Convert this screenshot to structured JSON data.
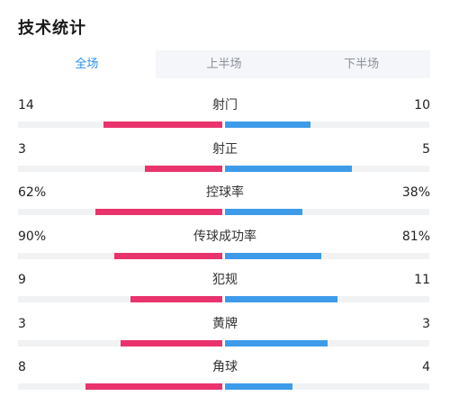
{
  "title": "技术统计",
  "tabs": [
    {
      "label": "全场",
      "active": true
    },
    {
      "label": "上半场",
      "active": false
    },
    {
      "label": "下半场",
      "active": false
    }
  ],
  "colors": {
    "home": "#e8336d",
    "away": "#3d9be9",
    "active_tab": "#2d8cf0"
  },
  "stats": [
    {
      "name": "射门",
      "left": "14",
      "right": "10",
      "left_share": 0.58,
      "right_share": 0.42
    },
    {
      "name": "射正",
      "left": "3",
      "right": "5",
      "left_share": 0.38,
      "right_share": 0.62
    },
    {
      "name": "控球率",
      "left": "62%",
      "right": "38%",
      "left_share": 0.62,
      "right_share": 0.38
    },
    {
      "name": "传球成功率",
      "left": "90%",
      "right": "81%",
      "left_share": 0.53,
      "right_share": 0.47
    },
    {
      "name": "犯规",
      "left": "9",
      "right": "11",
      "left_share": 0.45,
      "right_share": 0.55
    },
    {
      "name": "黄牌",
      "left": "3",
      "right": "3",
      "left_share": 0.5,
      "right_share": 0.5
    },
    {
      "name": "角球",
      "left": "8",
      "right": "4",
      "left_share": 0.67,
      "right_share": 0.33
    }
  ]
}
